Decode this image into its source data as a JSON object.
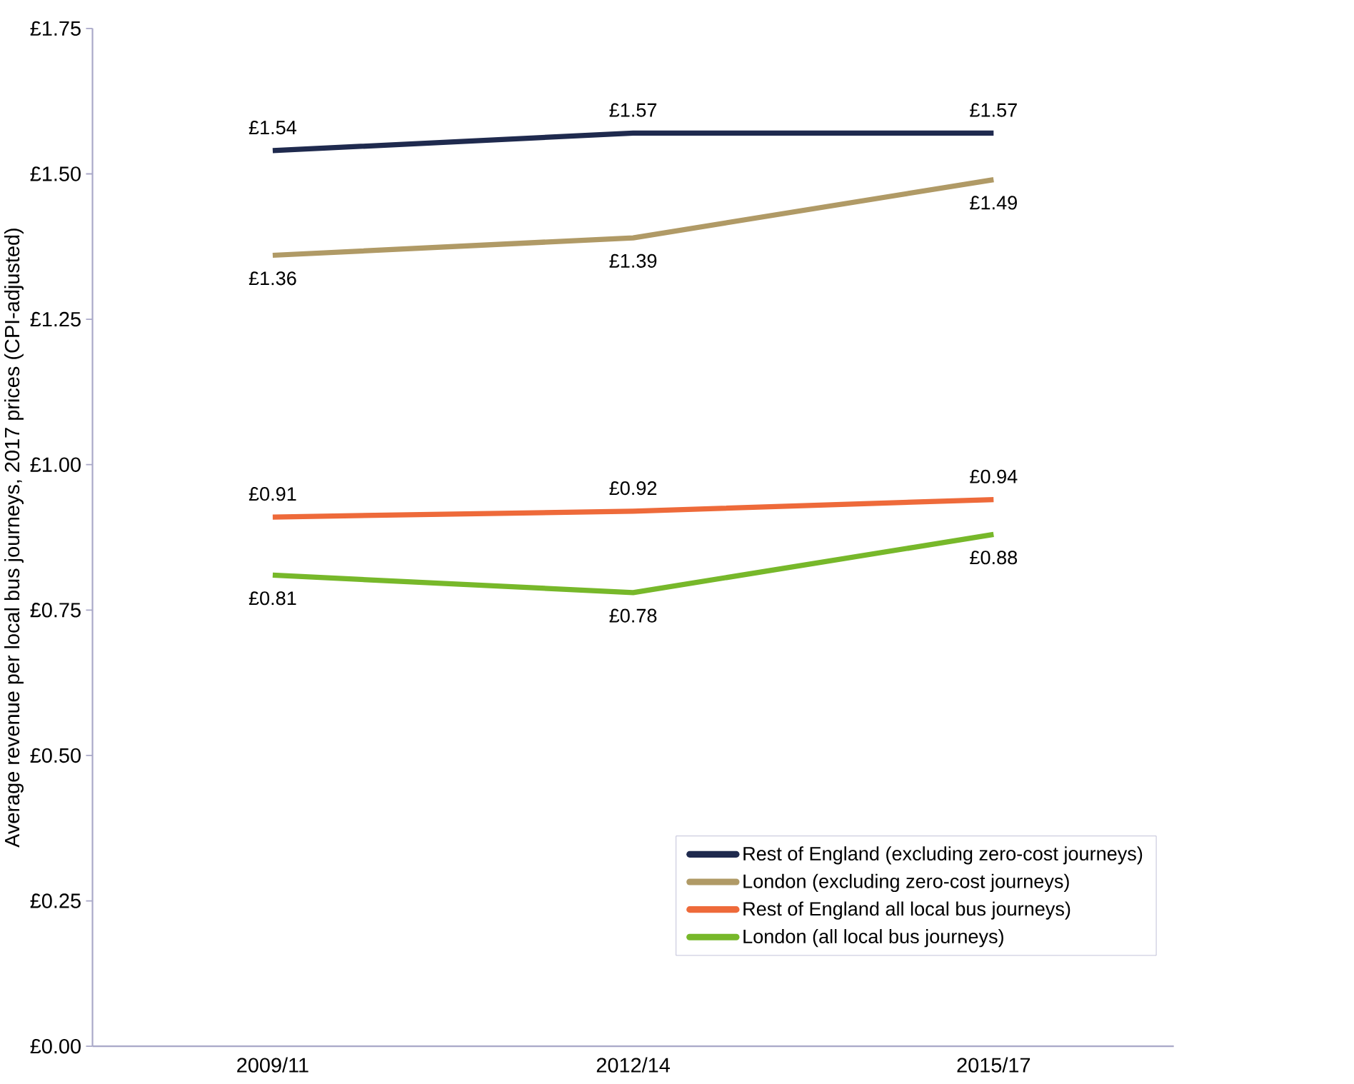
{
  "chart_data": {
    "type": "line",
    "ylabel": "Average revenue per local bus journeys, 2017 prices (CPI-adjusted)",
    "categories": [
      "2009/11",
      "2012/14",
      "2015/17"
    ],
    "series": [
      {
        "name": "Rest of England (excluding zero-cost journeys)",
        "color": "#1f2a4e",
        "values": [
          1.54,
          1.57,
          1.57
        ],
        "value_labels": [
          "£1.54",
          "£1.57",
          "£1.57"
        ]
      },
      {
        "name": "London (excluding zero-cost journeys)",
        "color": "#b09a66",
        "values": [
          1.36,
          1.39,
          1.49
        ],
        "value_labels": [
          "£1.36",
          "£1.39",
          "£1.49"
        ]
      },
      {
        "name": "Rest of England all local bus journeys)",
        "color": "#ee6a3a",
        "values": [
          0.91,
          0.92,
          0.94
        ],
        "value_labels": [
          "£0.91",
          "£0.92",
          "£0.94"
        ]
      },
      {
        "name": "London (all local bus journeys)",
        "color": "#77b82a",
        "values": [
          0.81,
          0.78,
          0.88
        ],
        "value_labels": [
          "£0.81",
          "£0.78",
          "£0.88"
        ]
      }
    ],
    "ylim": [
      0,
      1.75
    ],
    "yticks": [
      {
        "value": 0,
        "label": "£0.00"
      },
      {
        "value": 0.25,
        "label": "£0.25"
      },
      {
        "value": 0.5,
        "label": "£0.50"
      },
      {
        "value": 0.75,
        "label": "£0.75"
      },
      {
        "value": 1.0,
        "label": "£1.00"
      },
      {
        "value": 1.25,
        "label": "£1.25"
      },
      {
        "value": 1.5,
        "label": "£1.50"
      },
      {
        "value": 1.75,
        "label": "£1.75"
      }
    ],
    "grid": false,
    "legend": "bottom right",
    "marker": "none",
    "line_style": "solid"
  }
}
